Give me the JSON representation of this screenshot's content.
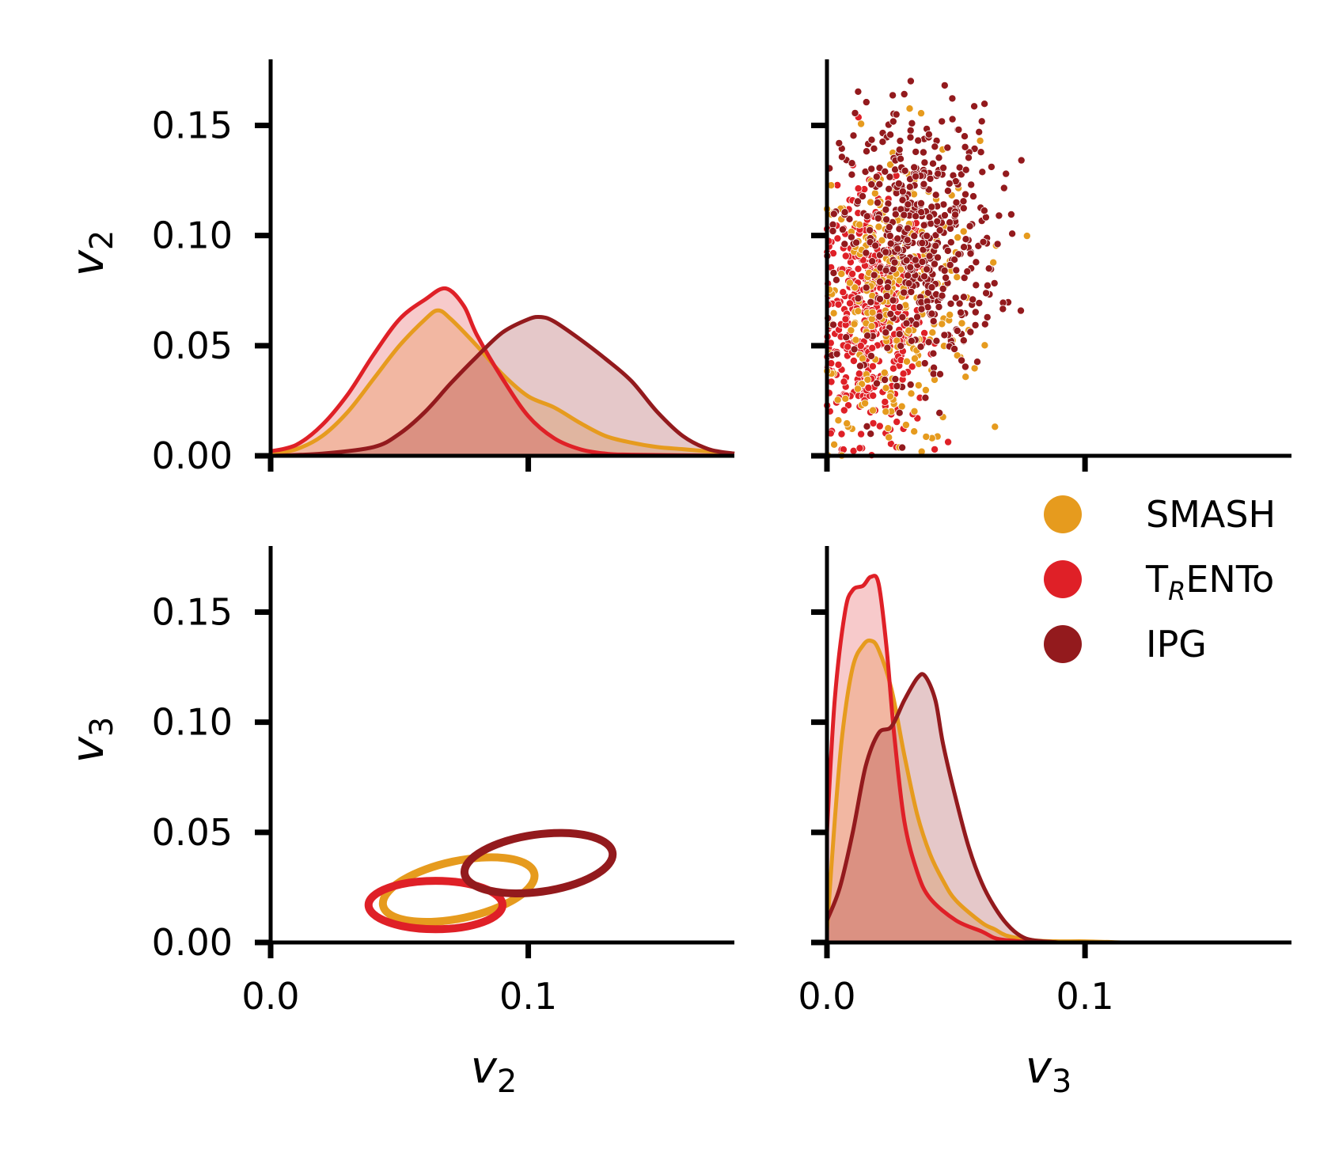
{
  "chart_data": {
    "type": "pairplot",
    "variables": [
      "v2",
      "v3"
    ],
    "axis_labels": {
      "v2": {
        "base": "v",
        "sub": "2"
      },
      "v3": {
        "base": "v",
        "sub": "3"
      }
    },
    "xlim": [
      0.0,
      0.18
    ],
    "ylim": [
      0.0,
      0.18
    ],
    "x_ticks": [
      {
        "value": 0.0,
        "label": "0.0"
      },
      {
        "value": 0.1,
        "label": "0.1"
      }
    ],
    "y_ticks": [
      {
        "value": 0.0,
        "label": "0.00"
      },
      {
        "value": 0.05,
        "label": "0.05"
      },
      {
        "value": 0.1,
        "label": "0.10"
      },
      {
        "value": 0.15,
        "label": "0.15"
      }
    ],
    "legend": {
      "placement": "right, between rows",
      "entries": [
        {
          "name": "SMASH",
          "base": "SMASH",
          "sub": "",
          "rest": "",
          "color": "#e69b1e"
        },
        {
          "name": "TRENTo",
          "base": "T",
          "sub": "R",
          "rest": "ENTo",
          "color": "#df2027"
        },
        {
          "name": "IPG",
          "base": "IPG",
          "sub": "",
          "rest": "",
          "color": "#931a1d"
        }
      ]
    },
    "series": [
      {
        "name": "SMASH",
        "color": "#e69b1e",
        "kde_v2": [
          [
            0,
            0.001
          ],
          [
            0.01,
            0.003
          ],
          [
            0.02,
            0.009
          ],
          [
            0.03,
            0.02
          ],
          [
            0.04,
            0.035
          ],
          [
            0.05,
            0.05
          ],
          [
            0.06,
            0.062
          ],
          [
            0.065,
            0.066
          ],
          [
            0.07,
            0.062
          ],
          [
            0.08,
            0.05
          ],
          [
            0.09,
            0.037
          ],
          [
            0.1,
            0.027
          ],
          [
            0.11,
            0.022
          ],
          [
            0.12,
            0.015
          ],
          [
            0.13,
            0.009
          ],
          [
            0.14,
            0.006
          ],
          [
            0.15,
            0.004
          ],
          [
            0.16,
            0.003
          ],
          [
            0.17,
            0.002
          ],
          [
            0.18,
            0.001
          ]
        ],
        "kde_v3": [
          [
            0,
            0.005
          ],
          [
            0.003,
            0.055
          ],
          [
            0.006,
            0.095
          ],
          [
            0.01,
            0.125
          ],
          [
            0.014,
            0.135
          ],
          [
            0.017,
            0.137
          ],
          [
            0.02,
            0.133
          ],
          [
            0.025,
            0.115
          ],
          [
            0.03,
            0.085
          ],
          [
            0.035,
            0.058
          ],
          [
            0.04,
            0.04
          ],
          [
            0.045,
            0.028
          ],
          [
            0.05,
            0.019
          ],
          [
            0.06,
            0.009
          ],
          [
            0.065,
            0.006
          ],
          [
            0.07,
            0.003
          ],
          [
            0.08,
            0.001
          ],
          [
            0.09,
            0.0005
          ],
          [
            0.1,
            0.0005
          ],
          [
            0.115,
            0.0
          ]
        ],
        "contour": {
          "cx": 0.073,
          "cy": 0.024,
          "rx": 0.03,
          "ry": 0.013,
          "angle_deg": 12
        }
      },
      {
        "name": "TRENTo",
        "color": "#df2027",
        "kde_v2": [
          [
            0,
            0.002
          ],
          [
            0.01,
            0.005
          ],
          [
            0.02,
            0.014
          ],
          [
            0.03,
            0.028
          ],
          [
            0.04,
            0.046
          ],
          [
            0.05,
            0.062
          ],
          [
            0.06,
            0.071
          ],
          [
            0.068,
            0.076
          ],
          [
            0.075,
            0.068
          ],
          [
            0.08,
            0.055
          ],
          [
            0.09,
            0.035
          ],
          [
            0.1,
            0.018
          ],
          [
            0.11,
            0.008
          ],
          [
            0.12,
            0.003
          ],
          [
            0.13,
            0.001
          ],
          [
            0.14,
            0.0005
          ],
          [
            0.18,
            0.0
          ]
        ],
        "kde_v3": [
          [
            0,
            0.05
          ],
          [
            0.003,
            0.11
          ],
          [
            0.007,
            0.15
          ],
          [
            0.01,
            0.16
          ],
          [
            0.014,
            0.162
          ],
          [
            0.017,
            0.166
          ],
          [
            0.02,
            0.163
          ],
          [
            0.023,
            0.135
          ],
          [
            0.026,
            0.095
          ],
          [
            0.03,
            0.055
          ],
          [
            0.035,
            0.032
          ],
          [
            0.04,
            0.02
          ],
          [
            0.05,
            0.01
          ],
          [
            0.06,
            0.005
          ],
          [
            0.065,
            0.002
          ],
          [
            0.07,
            0.001
          ],
          [
            0.08,
            0.0
          ]
        ],
        "contour": {
          "cx": 0.064,
          "cy": 0.017,
          "rx": 0.026,
          "ry": 0.011,
          "angle_deg": 0
        }
      },
      {
        "name": "IPG",
        "color": "#931a1d",
        "kde_v2": [
          [
            0,
            0.0
          ],
          [
            0.02,
            0.001
          ],
          [
            0.04,
            0.004
          ],
          [
            0.05,
            0.01
          ],
          [
            0.06,
            0.02
          ],
          [
            0.07,
            0.033
          ],
          [
            0.08,
            0.045
          ],
          [
            0.09,
            0.056
          ],
          [
            0.1,
            0.062
          ],
          [
            0.105,
            0.063
          ],
          [
            0.11,
            0.061
          ],
          [
            0.12,
            0.053
          ],
          [
            0.13,
            0.044
          ],
          [
            0.14,
            0.034
          ],
          [
            0.15,
            0.02
          ],
          [
            0.16,
            0.009
          ],
          [
            0.17,
            0.003
          ],
          [
            0.18,
            0.001
          ]
        ],
        "kde_v3": [
          [
            0,
            0.01
          ],
          [
            0.005,
            0.025
          ],
          [
            0.01,
            0.05
          ],
          [
            0.015,
            0.08
          ],
          [
            0.02,
            0.095
          ],
          [
            0.025,
            0.098
          ],
          [
            0.03,
            0.11
          ],
          [
            0.035,
            0.12
          ],
          [
            0.038,
            0.121
          ],
          [
            0.042,
            0.11
          ],
          [
            0.045,
            0.09
          ],
          [
            0.05,
            0.065
          ],
          [
            0.055,
            0.043
          ],
          [
            0.06,
            0.027
          ],
          [
            0.065,
            0.016
          ],
          [
            0.07,
            0.008
          ],
          [
            0.075,
            0.003
          ],
          [
            0.08,
            0.001
          ],
          [
            0.09,
            0.0
          ]
        ],
        "contour": {
          "cx": 0.104,
          "cy": 0.036,
          "rx": 0.029,
          "ry": 0.013,
          "angle_deg": 8
        }
      }
    ],
    "scatter_clouds": [
      {
        "name": "TRENTo",
        "mean_x": 0.017,
        "mean_y": 0.062,
        "sd_x": 0.011,
        "sd_y": 0.028,
        "n": 420
      },
      {
        "name": "SMASH",
        "mean_x": 0.027,
        "mean_y": 0.072,
        "sd_x": 0.016,
        "sd_y": 0.035,
        "n": 260
      },
      {
        "name": "IPG",
        "mean_x": 0.036,
        "mean_y": 0.098,
        "sd_x": 0.015,
        "sd_y": 0.03,
        "n": 480
      }
    ]
  }
}
